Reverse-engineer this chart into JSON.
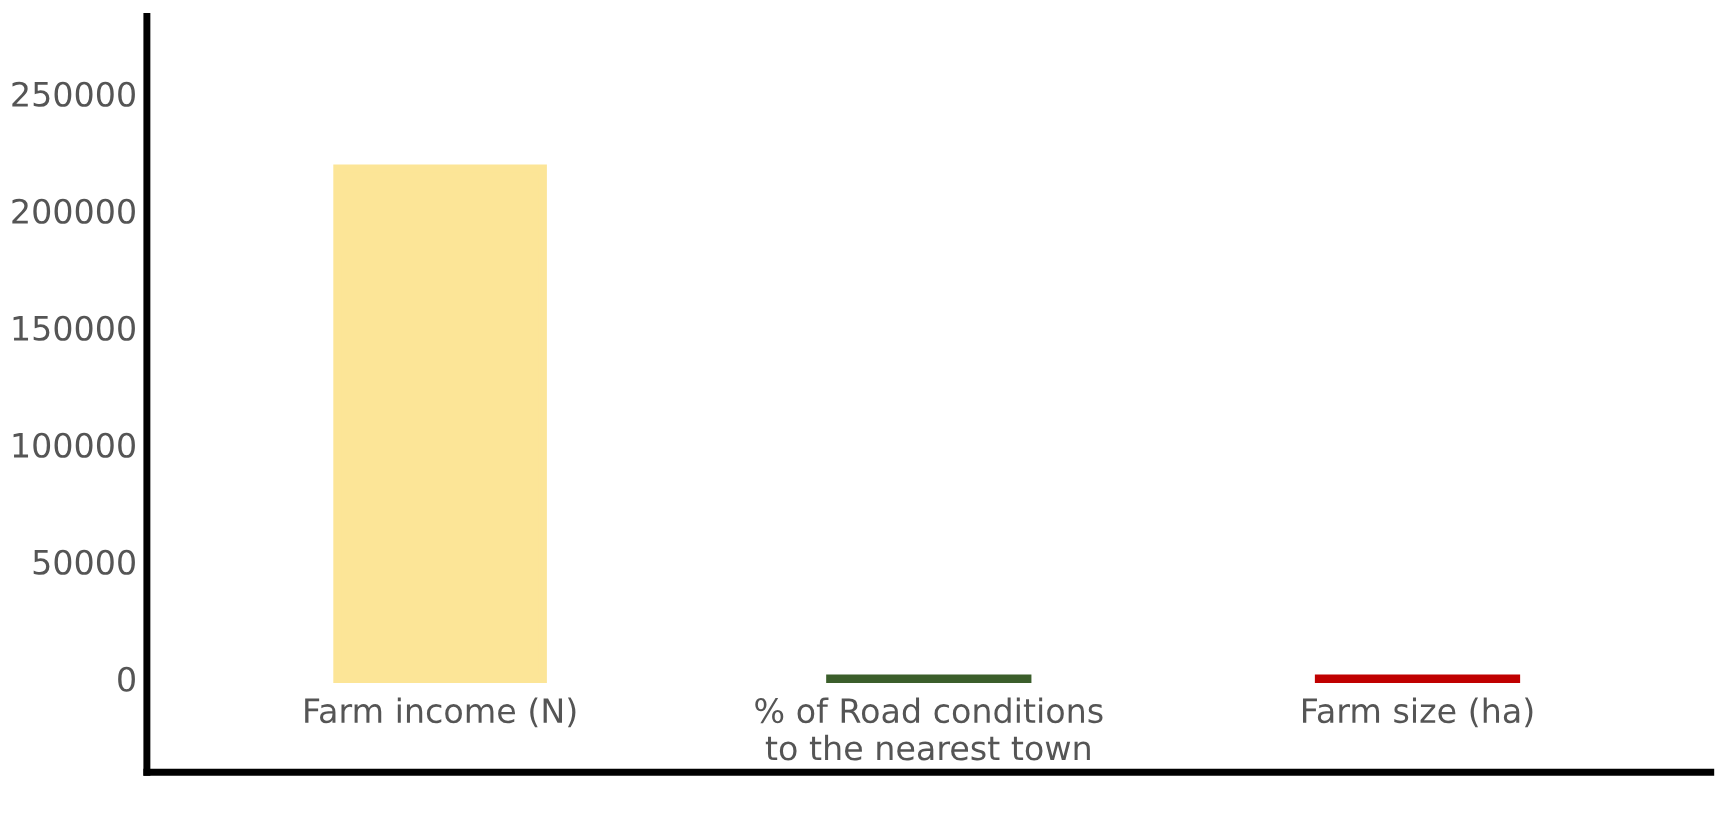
{
  "chart_data": {
    "type": "bar",
    "categories": [
      "Farm income (N)",
      "% of Road conditions\nto the nearest town",
      "Farm size (ha)"
    ],
    "values": [
      218000,
      0,
      0
    ],
    "colors": [
      "#fce597",
      "#3b5e2b",
      "#c00000"
    ],
    "ylim": [
      -40000,
      283000
    ],
    "yticks": [
      0,
      50000,
      100000,
      150000,
      200000,
      250000
    ],
    "grid": false
  }
}
